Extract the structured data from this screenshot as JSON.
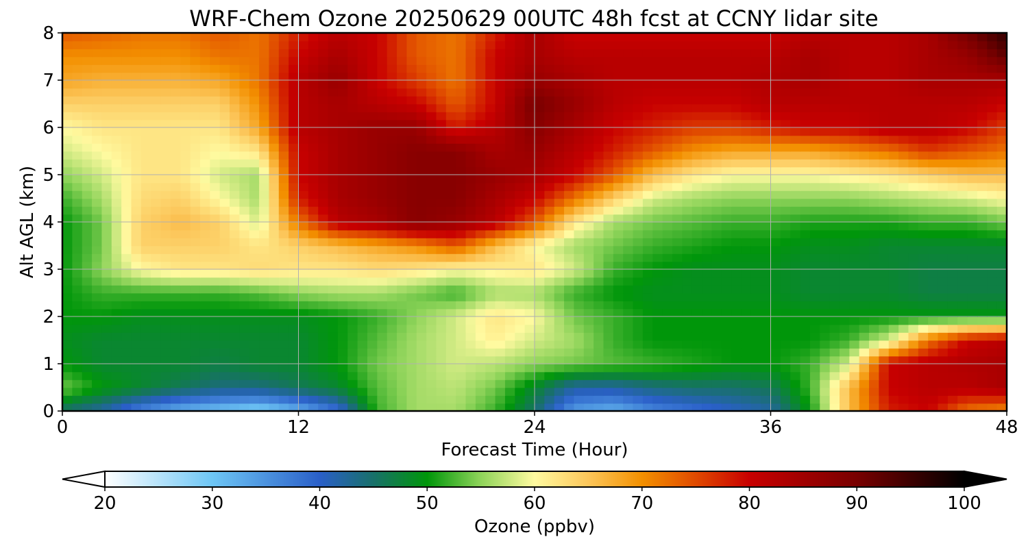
{
  "chart_data": {
    "type": "heatmap",
    "title": "WRF-Chem Ozone  20250629 00UTC 48h fcst at CCNY lidar site",
    "xlabel": "Forecast Time (Hour)",
    "ylabel": "Alt AGL (km)",
    "xlim": [
      0,
      48
    ],
    "ylim": [
      0,
      8
    ],
    "xticks": [
      "0",
      "12",
      "24",
      "36",
      "48"
    ],
    "yticks": [
      "0",
      "1",
      "2",
      "3",
      "4",
      "5",
      "6",
      "7",
      "8"
    ],
    "grid": true,
    "colorbar": {
      "label": "Ozone  (ppbv)",
      "range": [
        20,
        100
      ],
      "ticks": [
        "20",
        "30",
        "40",
        "50",
        "60",
        "70",
        "80",
        "90",
        "100"
      ],
      "extend": "both",
      "stops": [
        {
          "v": 20,
          "c": "#ffffff"
        },
        {
          "v": 30,
          "c": "#6ec6f5"
        },
        {
          "v": 40,
          "c": "#2a5fc8"
        },
        {
          "v": 45,
          "c": "#18706a"
        },
        {
          "v": 50,
          "c": "#00960a"
        },
        {
          "v": 55,
          "c": "#8fd45a"
        },
        {
          "v": 60,
          "c": "#fffaa0"
        },
        {
          "v": 65,
          "c": "#fcc65a"
        },
        {
          "v": 70,
          "c": "#f39000"
        },
        {
          "v": 75,
          "c": "#e04a00"
        },
        {
          "v": 80,
          "c": "#c80000"
        },
        {
          "v": 90,
          "c": "#780000"
        },
        {
          "v": 100,
          "c": "#000000"
        }
      ]
    },
    "x_hours": [
      0,
      2,
      4,
      6,
      8,
      10,
      12,
      14,
      16,
      18,
      20,
      22,
      24,
      26,
      28,
      30,
      32,
      34,
      36,
      38,
      40,
      42,
      44,
      46,
      48
    ],
    "z_km": [
      0,
      0.5,
      1,
      1.5,
      2,
      2.5,
      3,
      3.5,
      4,
      4.5,
      5,
      5.5,
      6,
      6.5,
      7,
      7.5,
      8
    ],
    "ozone_ppbv": [
      [
        45,
        42,
        36,
        32,
        30,
        28,
        32,
        38,
        52,
        56,
        56,
        52,
        45,
        34,
        32,
        36,
        38,
        40,
        42,
        50,
        66,
        78,
        80,
        72,
        70
      ],
      [
        54,
        50,
        48,
        46,
        44,
        44,
        46,
        48,
        53,
        56,
        57,
        54,
        48,
        42,
        42,
        44,
        45,
        45,
        46,
        52,
        66,
        80,
        82,
        82,
        84
      ],
      [
        50,
        48,
        48,
        48,
        47,
        48,
        48,
        50,
        54,
        56,
        58,
        57,
        55,
        54,
        53,
        52,
        51,
        50,
        50,
        52,
        58,
        80,
        82,
        83,
        84
      ],
      [
        49,
        48,
        48,
        48,
        48,
        48,
        48,
        50,
        53,
        56,
        58,
        61,
        58,
        56,
        52,
        50,
        50,
        50,
        50,
        50,
        52,
        58,
        72,
        80,
        82
      ],
      [
        50,
        50,
        49,
        49,
        49,
        49,
        49,
        50,
        52,
        55,
        58,
        62,
        60,
        54,
        52,
        50,
        50,
        50,
        50,
        50,
        50,
        50,
        50,
        50,
        50
      ],
      [
        50,
        52,
        52,
        52,
        52,
        53,
        55,
        56,
        56,
        54,
        52,
        56,
        56,
        52,
        50,
        49,
        49,
        49,
        49,
        48,
        48,
        48,
        47,
        47,
        47
      ],
      [
        50,
        55,
        60,
        62,
        62,
        63,
        62,
        62,
        63,
        62,
        60,
        61,
        62,
        58,
        52,
        50,
        49,
        49,
        49,
        48,
        48,
        48,
        47,
        47,
        47
      ],
      [
        50,
        54,
        64,
        64,
        64,
        62,
        64,
        66,
        68,
        70,
        74,
        66,
        60,
        56,
        54,
        52,
        51,
        50,
        50,
        49,
        49,
        48,
        48,
        48,
        48
      ],
      [
        50,
        54,
        64,
        66,
        64,
        58,
        72,
        82,
        84,
        88,
        86,
        82,
        74,
        62,
        56,
        54,
        53,
        52,
        52,
        51,
        51,
        51,
        52,
        52,
        54
      ],
      [
        52,
        56,
        63,
        64,
        60,
        56,
        78,
        84,
        86,
        88,
        88,
        84,
        80,
        72,
        64,
        58,
        56,
        55,
        55,
        55,
        55,
        56,
        57,
        58,
        60
      ],
      [
        55,
        58,
        62,
        62,
        58,
        56,
        80,
        84,
        86,
        88,
        88,
        86,
        84,
        80,
        74,
        66,
        62,
        60,
        60,
        60,
        61,
        62,
        64,
        66,
        66
      ],
      [
        58,
        60,
        62,
        62,
        60,
        62,
        80,
        84,
        86,
        88,
        88,
        84,
        86,
        82,
        78,
        74,
        70,
        68,
        68,
        68,
        70,
        72,
        76,
        74,
        72
      ],
      [
        60,
        62,
        62,
        62,
        62,
        68,
        82,
        84,
        86,
        86,
        78,
        82,
        88,
        84,
        80,
        78,
        76,
        76,
        78,
        80,
        80,
        82,
        82,
        80,
        76
      ],
      [
        64,
        64,
        64,
        64,
        64,
        70,
        82,
        84,
        82,
        80,
        74,
        80,
        90,
        86,
        82,
        80,
        80,
        80,
        82,
        82,
        82,
        82,
        82,
        82,
        80
      ],
      [
        68,
        67,
        67,
        67,
        68,
        72,
        82,
        86,
        80,
        76,
        72,
        80,
        86,
        84,
        82,
        82,
        82,
        82,
        83,
        84,
        82,
        82,
        84,
        84,
        84
      ],
      [
        70,
        70,
        70,
        70,
        72,
        72,
        80,
        84,
        80,
        74,
        72,
        80,
        84,
        82,
        82,
        82,
        82,
        82,
        82,
        84,
        82,
        82,
        84,
        86,
        92
      ],
      [
        74,
        73,
        72,
        72,
        74,
        72,
        78,
        82,
        80,
        74,
        72,
        78,
        84,
        80,
        80,
        80,
        80,
        80,
        80,
        82,
        82,
        82,
        84,
        90,
        96
      ]
    ]
  }
}
